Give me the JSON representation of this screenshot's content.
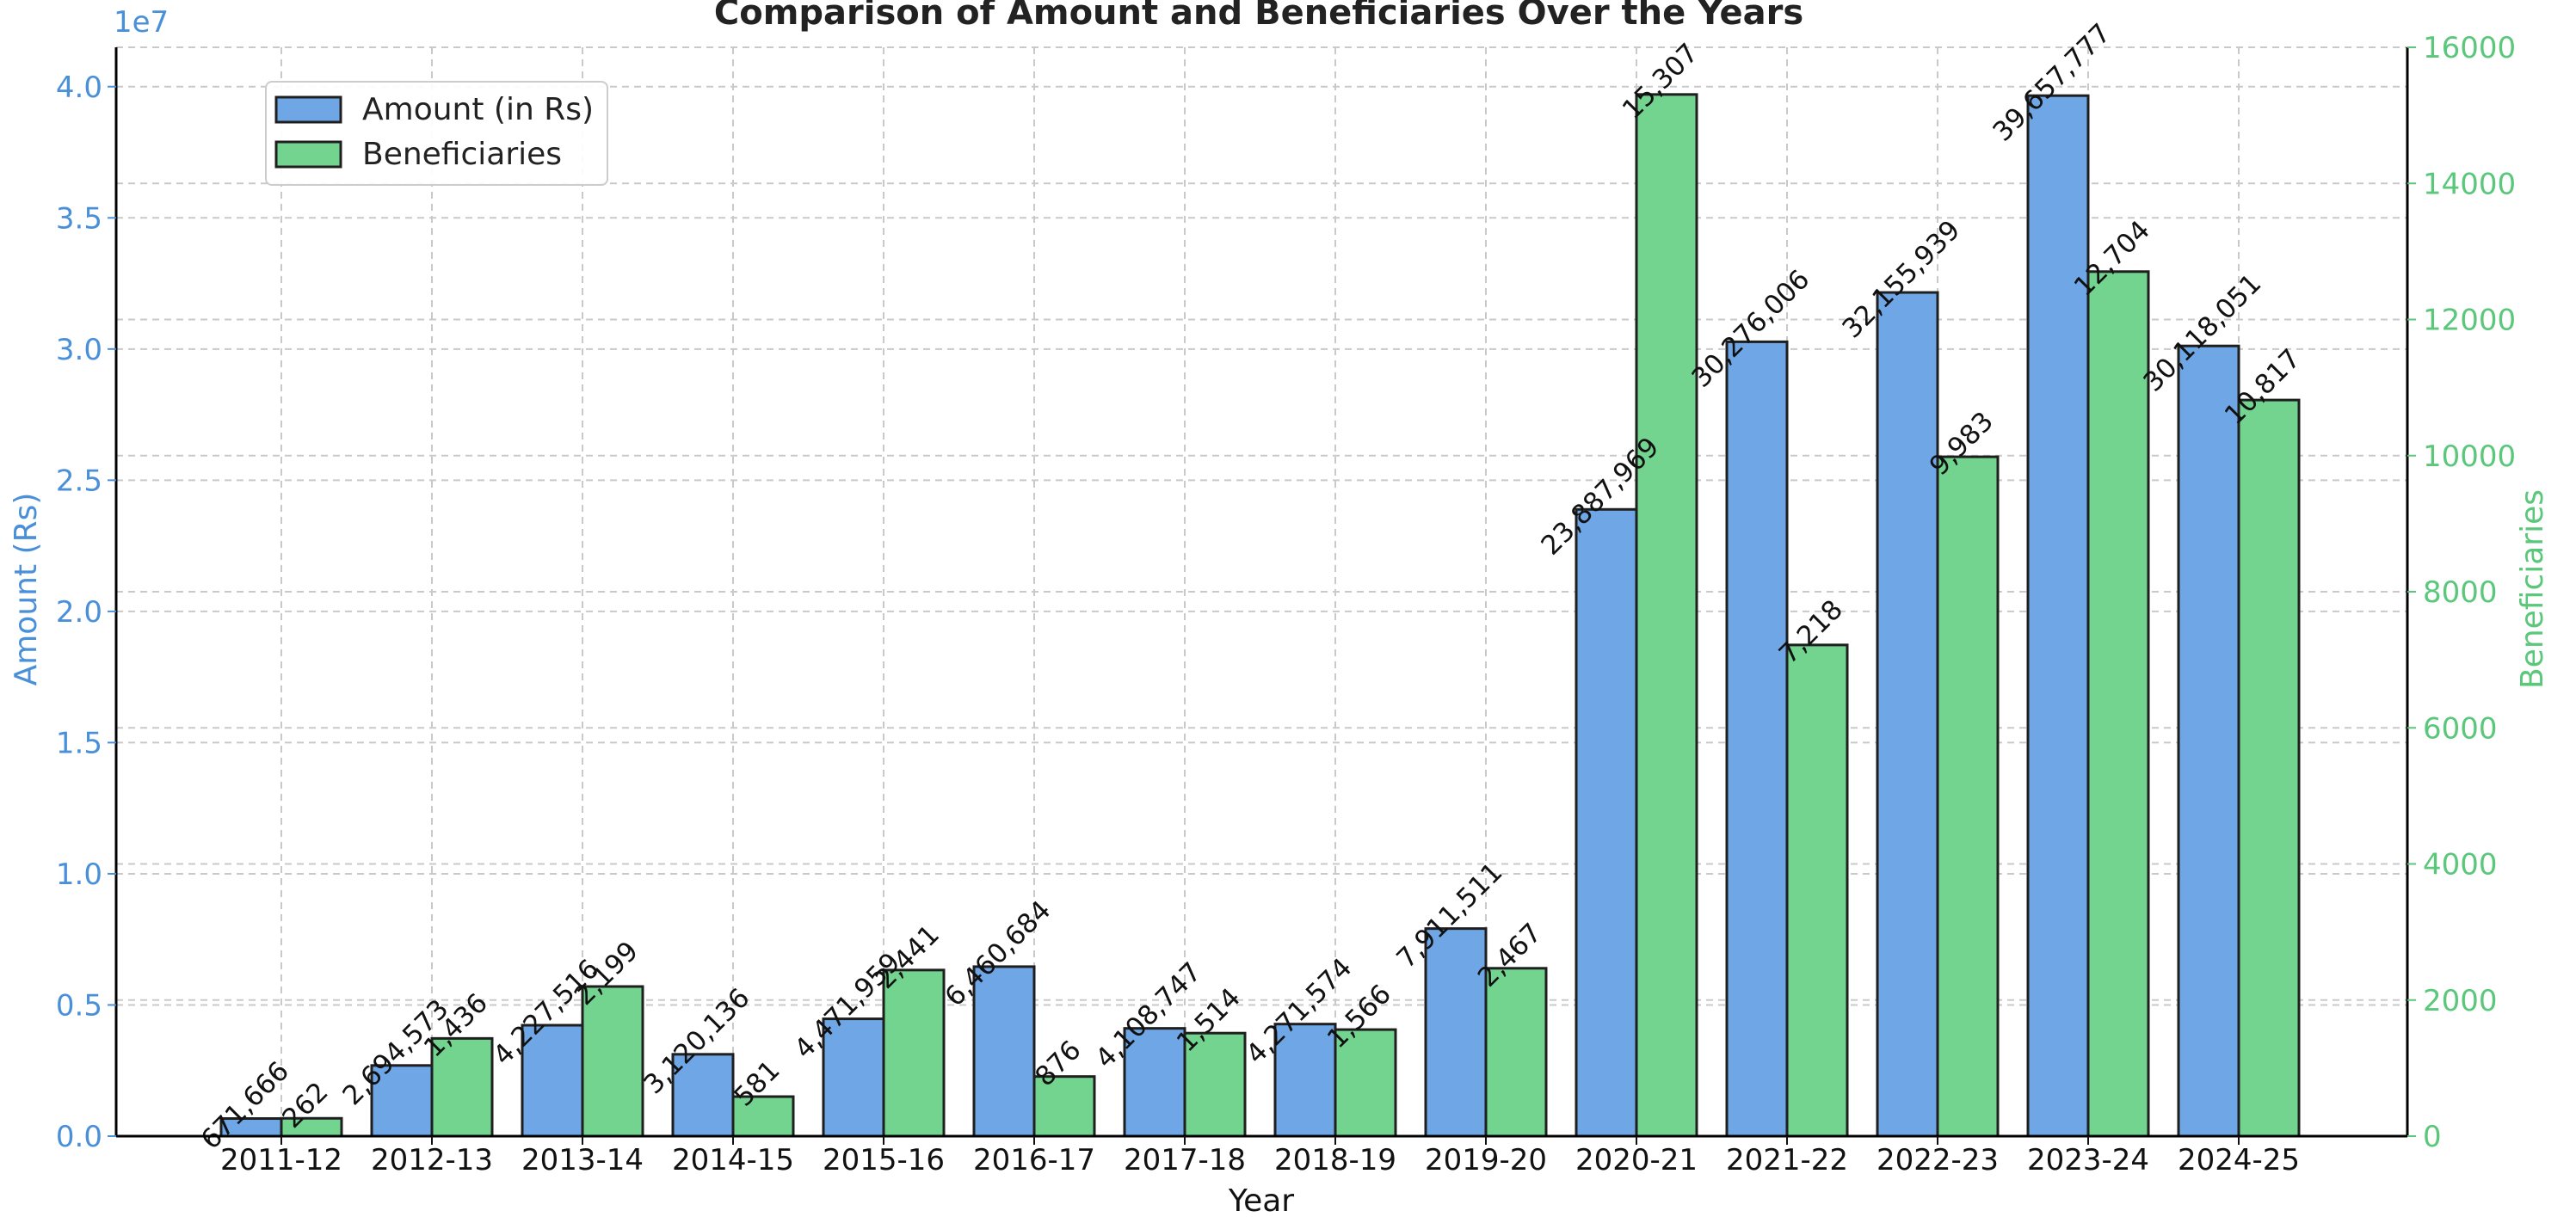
{
  "chart_data": {
    "type": "bar",
    "title": "Comparison of Amount and Beneficiaries Over the Years",
    "xlabel": "Year",
    "ylabel_left": "Amount (Rs)",
    "ylabel_right": "Beneficiaries",
    "left_axis_scale_label": "1e7",
    "categories": [
      "2011-12",
      "2012-13",
      "2013-14",
      "2014-15",
      "2015-16",
      "2016-17",
      "2017-18",
      "2018-19",
      "2019-20",
      "2020-21",
      "2021-22",
      "2022-23",
      "2023-24",
      "2024-25"
    ],
    "series": [
      {
        "name": "Amount (in Rs)",
        "axis": "left",
        "color": "#6ea6e6",
        "values": [
          671666,
          2694573,
          4227516,
          3120136,
          4471959,
          6460684,
          4108747,
          4271574,
          7911511,
          23887969,
          30276006,
          32155939,
          39657777,
          30118051
        ],
        "labels": [
          "671,666",
          "2,694,573",
          "4,227,516",
          "3,120,136",
          "4,471,959",
          "6,460,684",
          "4,108,747",
          "4,271,574",
          "7,911,511",
          "23,887,969",
          "30,276,006",
          "32,155,939",
          "39,657,777",
          "30,118,051"
        ]
      },
      {
        "name": "Beneficiaries",
        "axis": "right",
        "color": "#72d48f",
        "values": [
          262,
          1436,
          2199,
          581,
          2441,
          876,
          1514,
          1566,
          2467,
          15307,
          7218,
          9983,
          12704,
          10817
        ],
        "labels": [
          "262",
          "1,436",
          "2,199",
          "581",
          "2,441",
          "876",
          "1,514",
          "1,566",
          "2,467",
          "15,307",
          "7,218",
          "9,983",
          "12,704",
          "10,817"
        ]
      }
    ],
    "ylim_left": [
      0,
      41500000
    ],
    "ylim_right": [
      0,
      16000
    ],
    "left_ticks": [
      0,
      5000000,
      10000000,
      15000000,
      20000000,
      25000000,
      30000000,
      35000000,
      40000000
    ],
    "left_tick_labels": [
      "0.0",
      "0.5",
      "1.0",
      "1.5",
      "2.0",
      "2.5",
      "3.0",
      "3.5",
      "4.0"
    ],
    "right_ticks": [
      0,
      2000,
      4000,
      6000,
      8000,
      10000,
      12000,
      14000,
      16000
    ],
    "right_tick_labels": [
      "0",
      "2000",
      "4000",
      "6000",
      "8000",
      "10000",
      "12000",
      "14000",
      "16000"
    ],
    "legend_position": "top-left",
    "grid": true,
    "colors": {
      "left_axis": "#4a90d9",
      "right_axis": "#5ac77a",
      "bar_outline": "#1f1f1f",
      "grid": "#c9c9c9",
      "text": "#111111"
    }
  }
}
